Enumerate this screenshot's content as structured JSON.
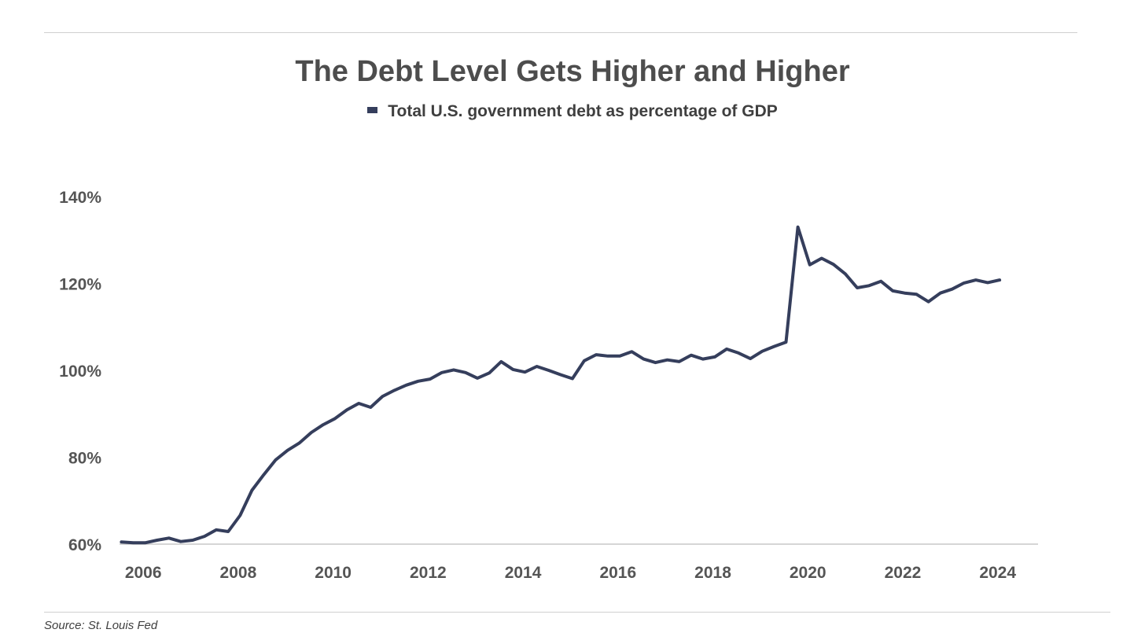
{
  "chart_data": {
    "type": "line",
    "title": "The Debt Level Gets Higher and Higher",
    "legend": {
      "position": "top-center"
    },
    "xlabel": "",
    "ylabel": "",
    "x_ticks": [
      "2006",
      "2008",
      "2010",
      "2012",
      "2014",
      "2016",
      "2018",
      "2020",
      "2022",
      "2024"
    ],
    "y_ticks": [
      "60%",
      "80%",
      "100%",
      "120%",
      "140%"
    ],
    "xlim": [
      2005.5,
      2024.85
    ],
    "ylim": [
      60,
      140
    ],
    "grid": false,
    "series": [
      {
        "name": "Total U.S. government debt as percentage of GDP",
        "color": "#353e5c",
        "points": [
          [
            2005.54,
            60.5
          ],
          [
            2005.79,
            60.3
          ],
          [
            2006.04,
            60.3
          ],
          [
            2006.29,
            60.9
          ],
          [
            2006.54,
            61.4
          ],
          [
            2006.79,
            60.6
          ],
          [
            2007.04,
            60.9
          ],
          [
            2007.29,
            61.8
          ],
          [
            2007.54,
            63.3
          ],
          [
            2007.79,
            62.9
          ],
          [
            2008.04,
            66.6
          ],
          [
            2008.29,
            72.4
          ],
          [
            2008.54,
            76.0
          ],
          [
            2008.79,
            79.4
          ],
          [
            2009.04,
            81.6
          ],
          [
            2009.29,
            83.3
          ],
          [
            2009.54,
            85.7
          ],
          [
            2009.79,
            87.5
          ],
          [
            2010.04,
            88.9
          ],
          [
            2010.29,
            90.9
          ],
          [
            2010.54,
            92.4
          ],
          [
            2010.79,
            91.5
          ],
          [
            2011.04,
            94.0
          ],
          [
            2011.29,
            95.4
          ],
          [
            2011.54,
            96.6
          ],
          [
            2011.79,
            97.5
          ],
          [
            2012.04,
            98.0
          ],
          [
            2012.29,
            99.5
          ],
          [
            2012.54,
            100.1
          ],
          [
            2012.79,
            99.5
          ],
          [
            2013.04,
            98.2
          ],
          [
            2013.29,
            99.4
          ],
          [
            2013.54,
            102.0
          ],
          [
            2013.79,
            100.2
          ],
          [
            2014.04,
            99.6
          ],
          [
            2014.29,
            100.9
          ],
          [
            2014.54,
            100.0
          ],
          [
            2014.79,
            99.0
          ],
          [
            2015.04,
            98.1
          ],
          [
            2015.29,
            102.2
          ],
          [
            2015.54,
            103.6
          ],
          [
            2015.79,
            103.3
          ],
          [
            2016.04,
            103.3
          ],
          [
            2016.29,
            104.3
          ],
          [
            2016.54,
            102.6
          ],
          [
            2016.79,
            101.8
          ],
          [
            2017.04,
            102.4
          ],
          [
            2017.29,
            102.0
          ],
          [
            2017.54,
            103.5
          ],
          [
            2017.79,
            102.6
          ],
          [
            2018.04,
            103.1
          ],
          [
            2018.29,
            104.9
          ],
          [
            2018.54,
            104.0
          ],
          [
            2018.79,
            102.7
          ],
          [
            2019.04,
            104.4
          ],
          [
            2019.29,
            105.5
          ],
          [
            2019.54,
            106.5
          ],
          [
            2019.79,
            133.0
          ],
          [
            2020.04,
            124.3
          ],
          [
            2020.29,
            125.8
          ],
          [
            2020.54,
            124.4
          ],
          [
            2020.79,
            122.2
          ],
          [
            2021.04,
            119.0
          ],
          [
            2021.29,
            119.5
          ],
          [
            2021.54,
            120.5
          ],
          [
            2021.79,
            118.3
          ],
          [
            2022.04,
            117.8
          ],
          [
            2022.29,
            117.5
          ],
          [
            2022.54,
            115.8
          ],
          [
            2022.79,
            117.8
          ],
          [
            2023.04,
            118.7
          ],
          [
            2023.29,
            120.1
          ],
          [
            2023.54,
            120.8
          ],
          [
            2023.79,
            120.2
          ],
          [
            2024.04,
            120.8
          ]
        ]
      }
    ]
  },
  "source": "Source: St. Louis Fed"
}
